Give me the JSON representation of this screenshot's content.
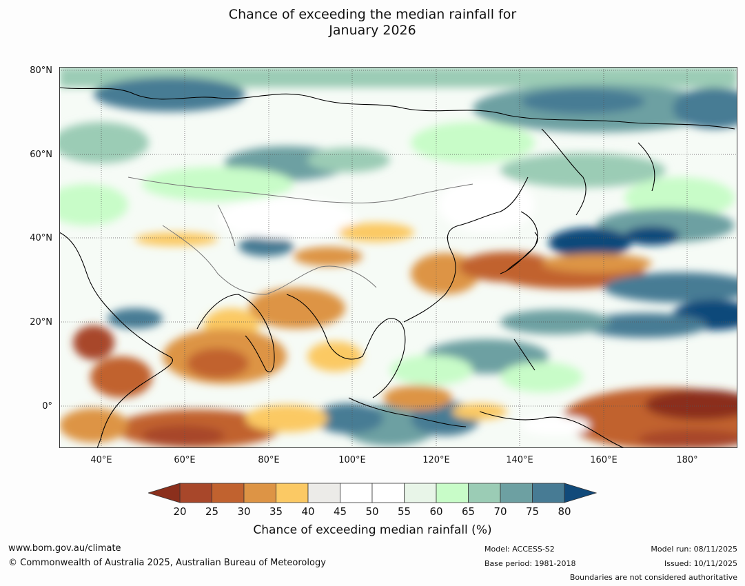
{
  "title": {
    "line1": "Chance of exceeding the median rainfall for",
    "line2": "January 2026"
  },
  "map": {
    "lat_labels": [
      "80°N",
      "60°N",
      "40°N",
      "20°N",
      "0°"
    ],
    "lon_labels": [
      "40°E",
      "60°E",
      "80°E",
      "100°E",
      "120°E",
      "140°E",
      "160°E",
      "180°"
    ],
    "extent": {
      "lon_min": 30,
      "lon_max": 192,
      "lat_min": -10,
      "lat_max": 80
    }
  },
  "colorbar": {
    "label": "Chance of exceeding median rainfall (%)",
    "ticks": [
      "20",
      "25",
      "30",
      "35",
      "40",
      "45",
      "50",
      "55",
      "60",
      "65",
      "70",
      "75",
      "80"
    ],
    "under_color": "#8b2f1c",
    "over_color": "#114a7a",
    "colors": [
      "#a8472a",
      "#c1622f",
      "#dd9445",
      "#fbc964",
      "#ecebe8",
      "#ffffff",
      "#ffffff",
      "#e8f5e8",
      "#c8fcc8",
      "#9bccb5",
      "#6da0a2",
      "#477b94"
    ]
  },
  "footer": {
    "website": "www.bom.gov.au/climate",
    "copyright": "© Commonwealth of Australia 2025, Australian Bureau of Meteorology",
    "model": "Model: ACCESS-S2",
    "base_period": "Base period: 1981-2018",
    "model_run": "Model run: 08/11/2025",
    "issued": "Issued: 10/11/2025",
    "disclaimer": "Boundaries are not considered authoritative"
  }
}
